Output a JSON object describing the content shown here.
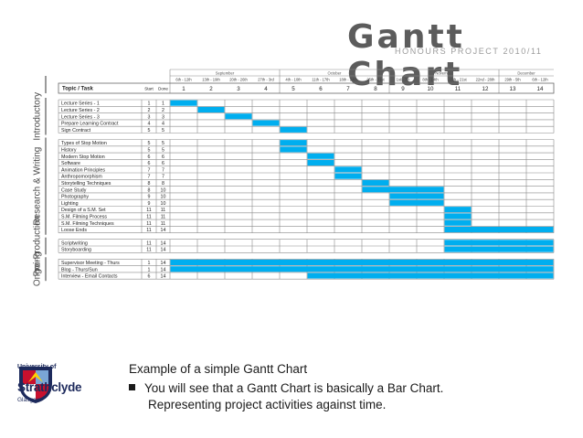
{
  "header": {
    "title": "Gantt Chart",
    "subtitle": "HONOURS PROJECT 2010/11"
  },
  "caption": {
    "line1": "Example of a simple Gantt Chart",
    "line2": "You will see that a Gantt Chart is basically a Bar Chart.",
    "line3": "Representing project activities against time."
  },
  "logo": {
    "line1": "University of",
    "line2": "Strathclyde",
    "line3": "Glasgow"
  },
  "colors": {
    "bar": "#00aeef",
    "grid": "#8a8a8a",
    "text": "#222222"
  },
  "chart_data": {
    "type": "table",
    "columns": {
      "task": "Topic / Task",
      "start": "Start",
      "done": "Done"
    },
    "months": [
      {
        "name": "September",
        "weeks": [
          1,
          4
        ]
      },
      {
        "name": "October",
        "weeks": [
          5,
          8
        ]
      },
      {
        "name": "November",
        "weeks": [
          9,
          12
        ]
      },
      {
        "name": "December",
        "weeks": [
          13,
          14
        ]
      }
    ],
    "week_ranges": [
      "6th - 12th",
      "13th - 19th",
      "20th - 26th",
      "27th - 3rd",
      "4th - 10th",
      "11th - 17th",
      "18th - 24th",
      "25th - 31st",
      "1st - 7th",
      "8th - 14th",
      "15th - 21st",
      "22nd - 28th",
      "29th - 5th",
      "6th - 12th"
    ],
    "weeks": [
      1,
      2,
      3,
      4,
      5,
      6,
      7,
      8,
      9,
      10,
      11,
      12,
      13,
      14
    ],
    "sections": [
      {
        "name": "Introductory",
        "tasks": [
          {
            "task": "Lecture Series - 1",
            "start": 1,
            "done": 1
          },
          {
            "task": "Lecture Series - 2",
            "start": 2,
            "done": 2
          },
          {
            "task": "Lecture Series - 3",
            "start": 3,
            "done": 3
          },
          {
            "task": "Prepare Learning Contract",
            "start": 4,
            "done": 4
          },
          {
            "task": "Sign Contract",
            "start": 5,
            "done": 5
          }
        ]
      },
      {
        "name": "Research & Writing",
        "tasks": [
          {
            "task": "Types of Stop Motion",
            "start": 5,
            "done": 5
          },
          {
            "task": "History",
            "start": 5,
            "done": 5
          },
          {
            "task": "Modern Stop Motion",
            "start": 6,
            "done": 6
          },
          {
            "task": "Software",
            "start": 6,
            "done": 6
          },
          {
            "task": "Animation Principles",
            "start": 7,
            "done": 7
          },
          {
            "task": "Anthropomorphism",
            "start": 7,
            "done": 7
          },
          {
            "task": "Storytelling Techniques",
            "start": 8,
            "done": 8
          },
          {
            "task": "Case Study",
            "start": 8,
            "done": 10
          },
          {
            "task": "Photography",
            "start": 9,
            "done": 10
          },
          {
            "task": "Lighting",
            "start": 9,
            "done": 10
          },
          {
            "task": "Design of a S.M. Set",
            "start": 11,
            "done": 11
          },
          {
            "task": "S.M. Filming Process",
            "start": 11,
            "done": 11
          },
          {
            "task": "S.M. Filming Techniques",
            "start": 11,
            "done": 11
          },
          {
            "task": "Loose Ends",
            "start": 11,
            "done": 14
          }
        ]
      },
      {
        "name": "Pre-Production",
        "tasks": [
          {
            "task": "Scriptwriting",
            "start": 11,
            "done": 14
          },
          {
            "task": "Storyboarding",
            "start": 11,
            "done": 14
          }
        ]
      },
      {
        "name": "Ongoing",
        "tasks": [
          {
            "task": "Supervisor Meeting - Thurs",
            "start": 1,
            "done": 14
          },
          {
            "task": "Blog - Thurs/Sun",
            "start": 1,
            "done": 14
          },
          {
            "task": "Interview - Email Contacts",
            "start": 6,
            "done": 14
          }
        ]
      }
    ]
  }
}
